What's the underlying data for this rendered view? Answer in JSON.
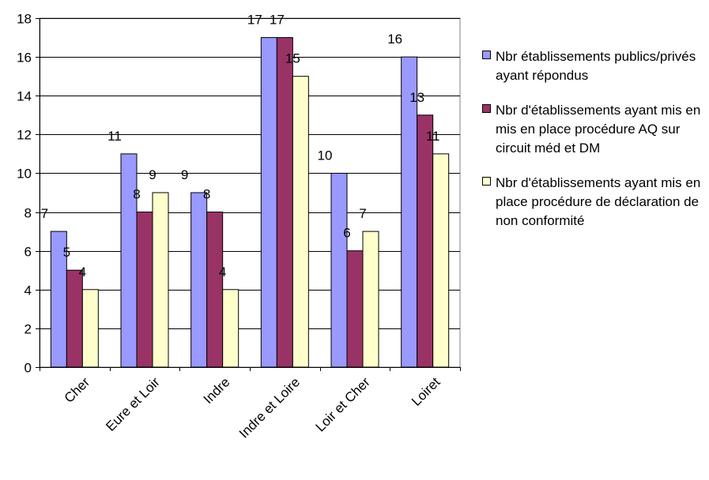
{
  "chart_data": {
    "type": "bar",
    "categories": [
      "Cher",
      "Eure et Loir",
      "Indre",
      "Indre et Loire",
      "Loir et Cher",
      "Loiret"
    ],
    "series": [
      {
        "name": "Nbr établissements publics/privés ayant répondus",
        "values": [
          7,
          11,
          9,
          17,
          10,
          16
        ],
        "color": "#9999ff"
      },
      {
        "name": "Nbr d'établissements ayant mis en mis en place procédure AQ sur circuit méd et DM",
        "values": [
          5,
          8,
          8,
          17,
          6,
          13
        ],
        "color": "#993366"
      },
      {
        "name": "Nbr d'établissements ayant mis en place procédure de déclaration de non conformité",
        "values": [
          4,
          9,
          4,
          15,
          7,
          11
        ],
        "color": "#ffffcc"
      }
    ],
    "ylim": [
      0,
      18
    ],
    "yticks": [
      0,
      2,
      4,
      6,
      8,
      10,
      12,
      14,
      16,
      18
    ],
    "grid": true,
    "legend_position": "right"
  }
}
